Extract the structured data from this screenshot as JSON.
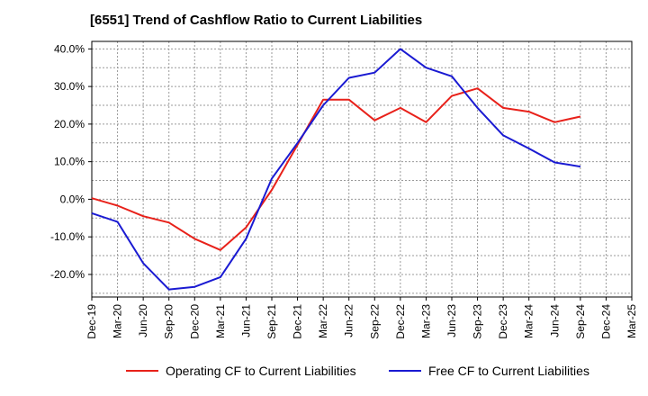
{
  "chart_data": {
    "type": "line",
    "title": "[6551]  Trend of Cashflow Ratio to Current Liabilities",
    "xlabel": "",
    "ylabel": "",
    "categories": [
      "Dec-19",
      "Mar-20",
      "Jun-20",
      "Sep-20",
      "Dec-20",
      "Mar-21",
      "Jun-21",
      "Sep-21",
      "Dec-21",
      "Mar-22",
      "Jun-22",
      "Sep-22",
      "Dec-22",
      "Mar-23",
      "Jun-23",
      "Sep-23",
      "Dec-23",
      "Mar-24",
      "Jun-24",
      "Sep-24",
      "Dec-24",
      "Mar-25"
    ],
    "ylim": [
      -26,
      42
    ],
    "yticks": [
      -20,
      -10,
      0,
      10,
      20,
      30,
      40
    ],
    "ytick_labels": [
      "-20.0%",
      "-10.0%",
      "0.0%",
      "10.0%",
      "20.0%",
      "30.0%",
      "40.0%"
    ],
    "grid": true,
    "legend_position": "bottom",
    "series": [
      {
        "name": "Operating CF to Current Liabilities",
        "color": "#e8211a",
        "values": [
          0.3,
          -1.7,
          -4.5,
          -6.2,
          -10.5,
          -13.5,
          -7.5,
          2.5,
          14.5,
          26.5,
          26.5,
          21.0,
          24.3,
          20.5,
          27.5,
          29.5,
          24.3,
          23.3,
          20.5,
          22.0,
          null,
          null
        ]
      },
      {
        "name": "Free CF to Current Liabilities",
        "color": "#1a1ad2",
        "values": [
          -3.7,
          -6.0,
          -17.0,
          -24.0,
          -23.3,
          -20.7,
          -10.5,
          5.5,
          15.0,
          25.0,
          32.3,
          33.7,
          40.0,
          35.0,
          32.7,
          24.3,
          17.0,
          13.5,
          9.8,
          8.7,
          null,
          null
        ]
      }
    ]
  }
}
